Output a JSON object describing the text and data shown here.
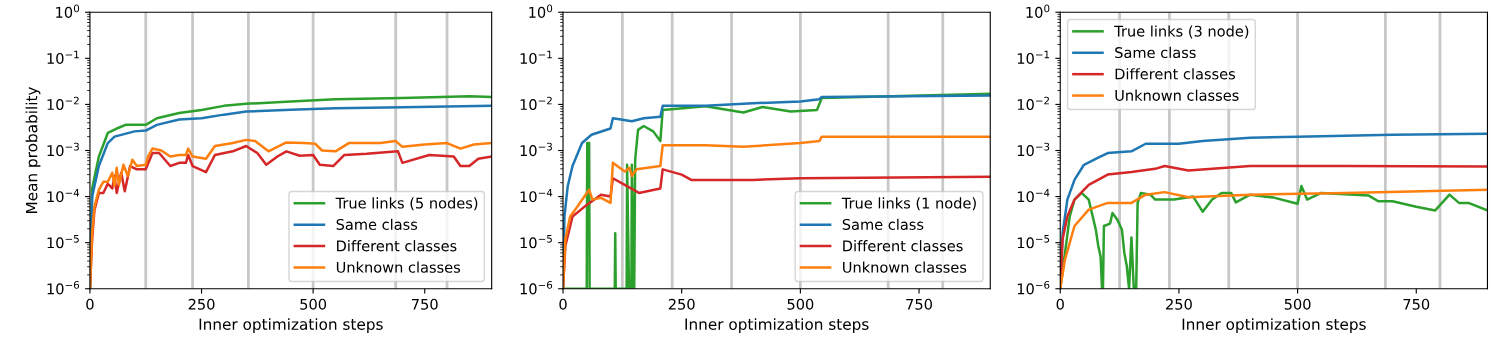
{
  "chart_data": [
    {
      "type": "line",
      "xlabel": "Inner optimization steps",
      "ylabel": "Mean probability",
      "xlim": [
        0,
        900
      ],
      "xticks": [
        0,
        250,
        500,
        750
      ],
      "ylim": [
        1e-06,
        1
      ],
      "log": "y",
      "yticks": [
        {
          "value": 1e-06,
          "label": "10$^{−6}$"
        },
        {
          "value": 1e-05,
          "label": "10$^{−5}$"
        },
        {
          "value": 0.0001,
          "label": "10$^{−4}$"
        },
        {
          "value": 0.001,
          "label": "10$^{−3}$"
        },
        {
          "value": 0.01,
          "label": "10$^{−2}$"
        },
        {
          "value": 0.1,
          "label": "10$^{−1}$"
        },
        {
          "value": 1,
          "label": "10$^{0}$"
        }
      ],
      "legend": "lower right",
      "ref_lines": [
        {
          "axis": "x",
          "value": 125,
          "color": "#c8c8c8"
        },
        {
          "axis": "x",
          "value": 230,
          "color": "#c8c8c8"
        },
        {
          "axis": "x",
          "value": 355,
          "color": "#c8c8c8"
        },
        {
          "axis": "x",
          "value": 500,
          "color": "#c8c8c8"
        },
        {
          "axis": "x",
          "value": 685,
          "color": "#c8c8c8"
        },
        {
          "axis": "x",
          "value": 800,
          "color": "#c8c8c8"
        }
      ],
      "series": [
        {
          "name": "True links (5 nodes)",
          "color": "#2ca02c",
          "x": [
            0,
            5,
            20,
            40,
            60,
            80,
            125,
            150,
            200,
            250,
            300,
            350,
            450,
            550,
            700,
            850,
            900
          ],
          "values": [
            1e-06,
            0.00015,
            0.00074,
            0.0024,
            0.003,
            0.0036,
            0.0036,
            0.005,
            0.0065,
            0.0076,
            0.0093,
            0.0103,
            0.0116,
            0.013,
            0.0137,
            0.015,
            0.0145
          ]
        },
        {
          "name": "Same class",
          "color": "#1f77b4",
          "x": [
            0,
            5,
            20,
            40,
            55,
            100,
            125,
            150,
            200,
            250,
            300,
            350,
            450,
            550,
            700,
            900
          ],
          "values": [
            1e-06,
            0.0001,
            0.00046,
            0.00145,
            0.002,
            0.0026,
            0.0027,
            0.0036,
            0.0047,
            0.005,
            0.006,
            0.007,
            0.0077,
            0.0083,
            0.0087,
            0.0093
          ]
        },
        {
          "name": "Different classes",
          "color": "#d62728",
          "x": [
            0,
            5,
            10,
            20,
            30,
            40,
            50,
            55,
            60,
            70,
            78,
            90,
            105,
            125,
            140,
            155,
            180,
            200,
            215,
            220,
            230,
            260,
            280,
            320,
            350,
            375,
            395,
            420,
            440,
            470,
            500,
            515,
            545,
            570,
            620,
            690,
            700,
            760,
            815,
            830,
            850,
            870,
            900
          ],
          "values": [
            1e-06,
            1.2e-05,
            5e-05,
            0.00012,
            0.00012,
            0.00019,
            0.00015,
            0.00028,
            0.00012,
            0.00033,
            0.00013,
            0.00046,
            0.00039,
            0.00039,
            0.00088,
            0.00088,
            0.00046,
            0.00054,
            0.00054,
            0.0008,
            0.00046,
            0.00034,
            0.0008,
            0.00096,
            0.00125,
            0.00088,
            0.00049,
            0.00074,
            0.00096,
            0.00077,
            0.0008,
            0.00049,
            0.00046,
            0.0008,
            0.00085,
            0.00096,
            0.00054,
            0.0008,
            0.00074,
            0.00046,
            0.00046,
            0.00066,
            0.00074
          ]
        },
        {
          "name": "Unknown classes",
          "color": "#ff7f0e",
          "x": [
            0,
            5,
            10,
            20,
            30,
            40,
            50,
            55,
            60,
            65,
            75,
            85,
            95,
            105,
            125,
            130,
            140,
            160,
            180,
            200,
            215,
            220,
            230,
            260,
            280,
            320,
            350,
            370,
            400,
            440,
            480,
            505,
            520,
            550,
            580,
            650,
            685,
            700,
            750,
            800,
            830,
            860,
            900
          ],
          "values": [
            1e-06,
            1.6e-05,
            6e-05,
            0.00014,
            0.00021,
            0.00021,
            0.00033,
            0.00017,
            0.00042,
            0.00018,
            0.00049,
            0.00028,
            0.00063,
            0.00046,
            0.00049,
            0.00074,
            0.0011,
            0.001,
            0.00074,
            0.0008,
            0.0008,
            0.0011,
            0.00074,
            0.00066,
            0.00125,
            0.00145,
            0.0017,
            0.0016,
            0.00096,
            0.0015,
            0.00145,
            0.0014,
            0.001,
            0.00096,
            0.00145,
            0.00145,
            0.0016,
            0.0012,
            0.00135,
            0.00145,
            0.0011,
            0.00135,
            0.00145
          ]
        }
      ]
    },
    {
      "type": "line",
      "xlabel": "Inner optimization steps",
      "xlim": [
        0,
        900
      ],
      "xticks": [
        0,
        250,
        500,
        750
      ],
      "ylim": [
        1e-06,
        1
      ],
      "log": "y",
      "yticks": [
        {
          "value": 1e-06,
          "label": "10$^{−6}$"
        },
        {
          "value": 1e-05,
          "label": "10$^{−5}$"
        },
        {
          "value": 0.0001,
          "label": "10$^{−4}$"
        },
        {
          "value": 0.001,
          "label": "10$^{−3}$"
        },
        {
          "value": 0.01,
          "label": "10$^{−2}$"
        },
        {
          "value": 0.1,
          "label": "10$^{−1}$"
        },
        {
          "value": 1,
          "label": "10$^{0}$"
        }
      ],
      "legend": "lower right",
      "ref_lines": [
        {
          "axis": "x",
          "value": 125,
          "color": "#c8c8c8"
        },
        {
          "axis": "x",
          "value": 230,
          "color": "#c8c8c8"
        },
        {
          "axis": "x",
          "value": 355,
          "color": "#c8c8c8"
        },
        {
          "axis": "x",
          "value": 500,
          "color": "#c8c8c8"
        },
        {
          "axis": "x",
          "value": 685,
          "color": "#c8c8c8"
        },
        {
          "axis": "x",
          "value": 800,
          "color": "#c8c8c8"
        }
      ],
      "series": [
        {
          "name": "True links (1 node)",
          "color": "#2ca02c",
          "x": [
            0,
            50,
            51,
            55,
            56,
            109,
            110,
            111,
            134,
            135,
            139,
            144,
            145,
            149,
            150,
            152,
            158,
            170,
            190,
            205,
            210,
            300,
            380,
            420,
            480,
            535,
            545,
            900
          ],
          "values": [
            1e-06,
            1e-06,
            0.00145,
            0.00145,
            1e-06,
            1e-06,
            1.6e-05,
            1e-06,
            1e-06,
            0.00049,
            1e-06,
            1e-06,
            0.00049,
            1e-06,
            1e-06,
            0.00063,
            0.0028,
            0.0034,
            0.0026,
            0.0016,
            0.0076,
            0.0091,
            0.0067,
            0.0088,
            0.007,
            0.0076,
            0.0137,
            0.017
          ]
        },
        {
          "name": "Same class",
          "color": "#1f77b4",
          "x": [
            0,
            3,
            10,
            20,
            40,
            60,
            100,
            105,
            145,
            170,
            205,
            210,
            300,
            400,
            500,
            540,
            545,
            900
          ],
          "values": [
            1e-06,
            3.7e-05,
            0.00017,
            0.00046,
            0.00145,
            0.0022,
            0.003,
            0.005,
            0.0043,
            0.005,
            0.0054,
            0.0093,
            0.0093,
            0.0106,
            0.0116,
            0.013,
            0.0145,
            0.0156
          ]
        },
        {
          "name": "Different classes",
          "color": "#d62728",
          "x": [
            0,
            5,
            20,
            50,
            80,
            100,
            105,
            130,
            160,
            205,
            210,
            250,
            270,
            400,
            500,
            900
          ],
          "values": [
            1e-06,
            8.6e-06,
            3.7e-05,
            6.6e-05,
            0.00011,
            0.0001,
            0.00025,
            0.00018,
            0.00012,
            0.00015,
            0.00039,
            0.0003,
            0.00023,
            0.00023,
            0.00025,
            0.00027
          ]
        },
        {
          "name": "Unknown classes",
          "color": "#ff7f0e",
          "x": [
            0,
            5,
            15,
            30,
            50,
            55,
            62,
            80,
            100,
            105,
            130,
            140,
            145,
            155,
            205,
            210,
            300,
            380,
            500,
            540,
            545,
            900
          ],
          "values": [
            1e-06,
            1.2e-05,
            3.7e-05,
            6e-05,
            0.00012,
            0.00014,
            8.6e-05,
            9.4e-05,
            7.3e-05,
            0.00054,
            0.00035,
            0.00042,
            0.00028,
            0.00039,
            0.00046,
            0.0013,
            0.0013,
            0.0012,
            0.00145,
            0.0016,
            0.002,
            0.002
          ]
        }
      ]
    },
    {
      "type": "line",
      "xlabel": "Inner optimization steps",
      "xlim": [
        0,
        900
      ],
      "xticks": [
        0,
        250,
        500,
        750
      ],
      "ylim": [
        1e-06,
        1
      ],
      "log": "y",
      "yticks": [
        {
          "value": 1e-06,
          "label": "10$^{−6}$"
        },
        {
          "value": 1e-05,
          "label": "10$^{−5}$"
        },
        {
          "value": 0.0001,
          "label": "10$^{−4}$"
        },
        {
          "value": 0.001,
          "label": "10$^{−3}$"
        },
        {
          "value": 0.01,
          "label": "10$^{−2}$"
        },
        {
          "value": 0.1,
          "label": "10$^{−1}$"
        },
        {
          "value": 1,
          "label": "10$^{0}$"
        }
      ],
      "legend": "upper left",
      "ref_lines": [
        {
          "axis": "x",
          "value": 125,
          "color": "#c8c8c8"
        },
        {
          "axis": "x",
          "value": 230,
          "color": "#c8c8c8"
        },
        {
          "axis": "x",
          "value": 355,
          "color": "#c8c8c8"
        },
        {
          "axis": "x",
          "value": 500,
          "color": "#c8c8c8"
        },
        {
          "axis": "x",
          "value": 685,
          "color": "#c8c8c8"
        },
        {
          "axis": "x",
          "value": 800,
          "color": "#c8c8c8"
        }
      ],
      "series": [
        {
          "name": "True links (3 node)",
          "color": "#2ca02c",
          "x": [
            0,
            10,
            20,
            30,
            45,
            60,
            75,
            80,
            85,
            88,
            90,
            92,
            105,
            110,
            120,
            130,
            135,
            140,
            145,
            150,
            155,
            160,
            163,
            170,
            190,
            200,
            240,
            280,
            300,
            320,
            340,
            360,
            370,
            400,
            450,
            500,
            508,
            520,
            550,
            650,
            670,
            700,
            750,
            790,
            820,
            840,
            860,
            900
          ],
          "values": [
            1e-06,
            6e-06,
            3.7e-05,
            8.6e-05,
            0.00012,
            8.6e-05,
            1.9e-05,
            8.6e-06,
            5e-06,
            1e-06,
            1e-06,
            2.3e-05,
            2.6e-05,
            4.4e-05,
            3.2e-05,
            1.9e-05,
            6e-06,
            3.2e-06,
            1e-06,
            1.3e-05,
            1e-06,
            1e-06,
            7.3e-05,
            0.00012,
            0.00011,
            8.6e-05,
            8.6e-05,
            0.0001,
            4.7e-05,
            8.6e-05,
            0.00012,
            0.00012,
            7.5e-05,
            0.00011,
            9.5e-05,
            7e-05,
            0.00017,
            8.6e-05,
            0.00012,
            0.000105,
            7.9e-05,
            7.9e-05,
            6e-05,
            5e-05,
            0.00011,
            7.3e-05,
            7.3e-05,
            5e-05
          ]
        },
        {
          "name": "Same class",
          "color": "#1f77b4",
          "x": [
            0,
            5,
            15,
            30,
            50,
            80,
            100,
            150,
            180,
            250,
            300,
            400,
            500,
            700,
            900
          ],
          "values": [
            1e-06,
            1.6e-05,
            8.6e-05,
            0.00023,
            0.00049,
            0.0007,
            0.00088,
            0.00096,
            0.0014,
            0.0014,
            0.0016,
            0.0019,
            0.002,
            0.0022,
            0.0023
          ]
        },
        {
          "name": "Different classes",
          "color": "#d62728",
          "x": [
            0,
            5,
            15,
            30,
            60,
            100,
            150,
            200,
            220,
            270,
            400,
            600,
            900
          ],
          "values": [
            1e-06,
            1.2e-05,
            3.7e-05,
            8.6e-05,
            0.00018,
            0.0003,
            0.00034,
            0.0004,
            0.00046,
            0.00037,
            0.00046,
            0.00046,
            0.00045
          ]
        },
        {
          "name": "Unknown classes",
          "color": "#ff7f0e",
          "x": [
            0,
            10,
            30,
            60,
            100,
            150,
            180,
            220,
            270,
            400,
            600,
            900
          ],
          "values": [
            1e-06,
            4.3e-06,
            2.3e-05,
            5.2e-05,
            7.3e-05,
            7.3e-05,
            0.00011,
            0.000125,
            9.7e-05,
            0.00011,
            0.00012,
            0.00014
          ]
        }
      ]
    }
  ]
}
